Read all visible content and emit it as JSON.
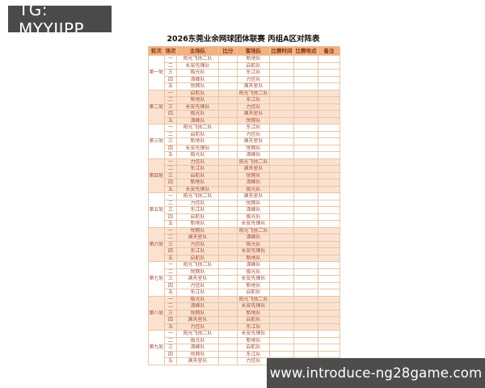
{
  "badge": {
    "text": "TG: MYYJJPP"
  },
  "footer": {
    "url": "www.introduce-ng28game.com"
  },
  "table": {
    "title": "2026东莞业余网球团体联赛  丙组A区对阵表",
    "columns": [
      "轮次",
      "场次",
      "主场队",
      "比分",
      "客场队",
      "比赛时间",
      "比赛地点",
      "备注"
    ],
    "rounds": [
      {
        "name": "第一轮",
        "matches": [
          {
            "no": "一",
            "home": "阳光飞扬二队",
            "score": "",
            "away": "新地队",
            "time": "",
            "venue": "",
            "note": ""
          },
          {
            "no": "二",
            "home": "长安先锋队",
            "score": "",
            "away": "启航队",
            "time": "",
            "venue": "",
            "note": ""
          },
          {
            "no": "三",
            "home": "极光队",
            "score": "",
            "away": "东江队",
            "time": "",
            "venue": "",
            "note": ""
          },
          {
            "no": "四",
            "home": "潭峰队",
            "score": "",
            "away": "力信队",
            "time": "",
            "venue": "",
            "note": ""
          },
          {
            "no": "五",
            "home": "悦网队",
            "score": "",
            "away": "满天星队",
            "time": "",
            "venue": "",
            "note": ""
          }
        ]
      },
      {
        "name": "第二轮",
        "matches": [
          {
            "no": "一",
            "home": "启航队",
            "score": "",
            "away": "阳光飞扬二队",
            "time": "",
            "venue": "",
            "note": ""
          },
          {
            "no": "二",
            "home": "新地队",
            "score": "",
            "away": "东江队",
            "time": "",
            "venue": "",
            "note": ""
          },
          {
            "no": "三",
            "home": "长安先锋队",
            "score": "",
            "away": "力信队",
            "time": "",
            "venue": "",
            "note": ""
          },
          {
            "no": "四",
            "home": "极光队",
            "score": "",
            "away": "满天星队",
            "time": "",
            "venue": "",
            "note": ""
          },
          {
            "no": "五",
            "home": "潭峰队",
            "score": "",
            "away": "悦网队",
            "time": "",
            "venue": "",
            "note": ""
          }
        ]
      },
      {
        "name": "第三轮",
        "matches": [
          {
            "no": "一",
            "home": "阳光飞扬二队",
            "score": "",
            "away": "东江队",
            "time": "",
            "venue": "",
            "note": ""
          },
          {
            "no": "二",
            "home": "启航队",
            "score": "",
            "away": "力信队",
            "time": "",
            "venue": "",
            "note": ""
          },
          {
            "no": "三",
            "home": "新地队",
            "score": "",
            "away": "满天星队",
            "time": "",
            "venue": "",
            "note": ""
          },
          {
            "no": "四",
            "home": "长安先锋队",
            "score": "",
            "away": "悦网队",
            "time": "",
            "venue": "",
            "note": ""
          },
          {
            "no": "五",
            "home": "极光队",
            "score": "",
            "away": "潭峰队",
            "time": "",
            "venue": "",
            "note": ""
          }
        ]
      },
      {
        "name": "第四轮",
        "matches": [
          {
            "no": "一",
            "home": "力信队",
            "score": "",
            "away": "阳光飞扬二队",
            "time": "",
            "venue": "",
            "note": ""
          },
          {
            "no": "二",
            "home": "东江队",
            "score": "",
            "away": "满天星队",
            "time": "",
            "venue": "",
            "note": ""
          },
          {
            "no": "三",
            "home": "启航队",
            "score": "",
            "away": "悦网队",
            "time": "",
            "venue": "",
            "note": ""
          },
          {
            "no": "四",
            "home": "新地队",
            "score": "",
            "away": "潭峰队",
            "time": "",
            "venue": "",
            "note": ""
          },
          {
            "no": "五",
            "home": "长安先锋队",
            "score": "",
            "away": "极光队",
            "time": "",
            "venue": "",
            "note": ""
          }
        ]
      },
      {
        "name": "第五轮",
        "matches": [
          {
            "no": "一",
            "home": "阳光飞扬二队",
            "score": "",
            "away": "满天星队",
            "time": "",
            "venue": "",
            "note": ""
          },
          {
            "no": "二",
            "home": "力信队",
            "score": "",
            "away": "悦网队",
            "time": "",
            "venue": "",
            "note": ""
          },
          {
            "no": "三",
            "home": "东江队",
            "score": "",
            "away": "潭峰队",
            "time": "",
            "venue": "",
            "note": ""
          },
          {
            "no": "四",
            "home": "启航队",
            "score": "",
            "away": "极光队",
            "time": "",
            "venue": "",
            "note": ""
          },
          {
            "no": "五",
            "home": "新地队",
            "score": "",
            "away": "长安先锋队",
            "time": "",
            "venue": "",
            "note": ""
          }
        ]
      },
      {
        "name": "第六轮",
        "matches": [
          {
            "no": "一",
            "home": "悦网队",
            "score": "",
            "away": "阳光飞扬二队",
            "time": "",
            "venue": "",
            "note": ""
          },
          {
            "no": "二",
            "home": "满天星队",
            "score": "",
            "away": "潭峰队",
            "time": "",
            "venue": "",
            "note": ""
          },
          {
            "no": "三",
            "home": "力信队",
            "score": "",
            "away": "极光队",
            "time": "",
            "venue": "",
            "note": ""
          },
          {
            "no": "四",
            "home": "东江队",
            "score": "",
            "away": "长安先锋队",
            "time": "",
            "venue": "",
            "note": ""
          },
          {
            "no": "五",
            "home": "启航队",
            "score": "",
            "away": "新地队",
            "time": "",
            "venue": "",
            "note": ""
          }
        ]
      },
      {
        "name": "第七轮",
        "matches": [
          {
            "no": "一",
            "home": "阳光飞扬二队",
            "score": "",
            "away": "潭峰队",
            "time": "",
            "venue": "",
            "note": ""
          },
          {
            "no": "二",
            "home": "悦网队",
            "score": "",
            "away": "极光队",
            "time": "",
            "venue": "",
            "note": ""
          },
          {
            "no": "三",
            "home": "满天星队",
            "score": "",
            "away": "长安先锋队",
            "time": "",
            "venue": "",
            "note": ""
          },
          {
            "no": "四",
            "home": "力信队",
            "score": "",
            "away": "新地队",
            "time": "",
            "venue": "",
            "note": ""
          },
          {
            "no": "五",
            "home": "东江队",
            "score": "",
            "away": "启航队",
            "time": "",
            "venue": "",
            "note": ""
          }
        ]
      },
      {
        "name": "第八轮",
        "matches": [
          {
            "no": "一",
            "home": "极光队",
            "score": "",
            "away": "阳光飞扬二队",
            "time": "",
            "venue": "",
            "note": ""
          },
          {
            "no": "二",
            "home": "潭峰队",
            "score": "",
            "away": "长安先锋队",
            "time": "",
            "venue": "",
            "note": ""
          },
          {
            "no": "三",
            "home": "悦网队",
            "score": "",
            "away": "新地队",
            "time": "",
            "venue": "",
            "note": ""
          },
          {
            "no": "四",
            "home": "满天星队",
            "score": "",
            "away": "启航队",
            "time": "",
            "venue": "",
            "note": ""
          },
          {
            "no": "五",
            "home": "力信队",
            "score": "",
            "away": "东江队",
            "time": "",
            "venue": "",
            "note": ""
          }
        ]
      },
      {
        "name": "第九轮",
        "matches": [
          {
            "no": "一",
            "home": "阳光飞扬二队",
            "score": "",
            "away": "长安先锋队",
            "time": "",
            "venue": "",
            "note": ""
          },
          {
            "no": "二",
            "home": "极光队",
            "score": "",
            "away": "新地队",
            "time": "",
            "venue": "",
            "note": ""
          },
          {
            "no": "三",
            "home": "潭峰队",
            "score": "",
            "away": "启航队",
            "time": "",
            "venue": "",
            "note": ""
          },
          {
            "no": "四",
            "home": "悦网队",
            "score": "",
            "away": "东江队",
            "time": "",
            "venue": "",
            "note": ""
          },
          {
            "no": "五",
            "home": "满天星队",
            "score": "",
            "away": "力信队",
            "time": "",
            "venue": "",
            "note": ""
          }
        ]
      }
    ]
  },
  "colors": {
    "badge_bg": "#4a4a4a",
    "footer_bg": "#4d4d4d",
    "header_bg": "#f3b17e",
    "alt_bg": "#fbe2d0",
    "border": "#e6c6a8",
    "text": "#a3503c"
  }
}
